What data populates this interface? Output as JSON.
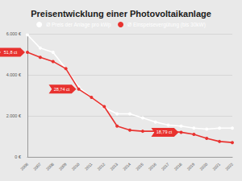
{
  "chart_data": {
    "type": "line",
    "title": "Preisentwicklung einer Photovoltaikanlage",
    "categories": [
      "2006",
      "2007",
      "2008",
      "2009",
      "2010",
      "2011",
      "2012",
      "2013",
      "2014",
      "2015",
      "2016",
      "2017",
      "2018",
      "2019",
      "2020",
      "2021",
      "2022"
    ],
    "series": [
      {
        "name": "Ø Preis der Anlage pro kWp",
        "color": "#ffffff",
        "marker": "circle",
        "values": [
          5950,
          5300,
          5100,
          4300,
          3400,
          2900,
          2400,
          2100,
          2100,
          1900,
          1700,
          1550,
          1500,
          1400,
          1350,
          1400,
          1400
        ]
      },
      {
        "name": "Ø Einspeisevergütung (bis 30kW)",
        "color": "#e8322f",
        "marker": "circle",
        "values": [
          5100,
          4850,
          4650,
          4300,
          3300,
          2900,
          2450,
          1500,
          1300,
          1250,
          1250,
          1250,
          1200,
          1100,
          900,
          750,
          700
        ]
      }
    ],
    "annotations": [
      {
        "text": "51,8 ct",
        "x": "2006",
        "y": 5100
      },
      {
        "text": "28,74 ct",
        "x": "2010",
        "y": 3300
      },
      {
        "text": "18,79 ct",
        "x": "2018",
        "y": 1200
      }
    ],
    "ylim": [
      0,
      6000
    ],
    "yticks": [
      {
        "value": 0,
        "label": "0 €"
      },
      {
        "value": 2000,
        "label": "2.000 €"
      },
      {
        "value": 4000,
        "label": "4.000 €"
      },
      {
        "value": 6000,
        "label": "6.000 €"
      }
    ],
    "grid": true,
    "legend": "top"
  }
}
